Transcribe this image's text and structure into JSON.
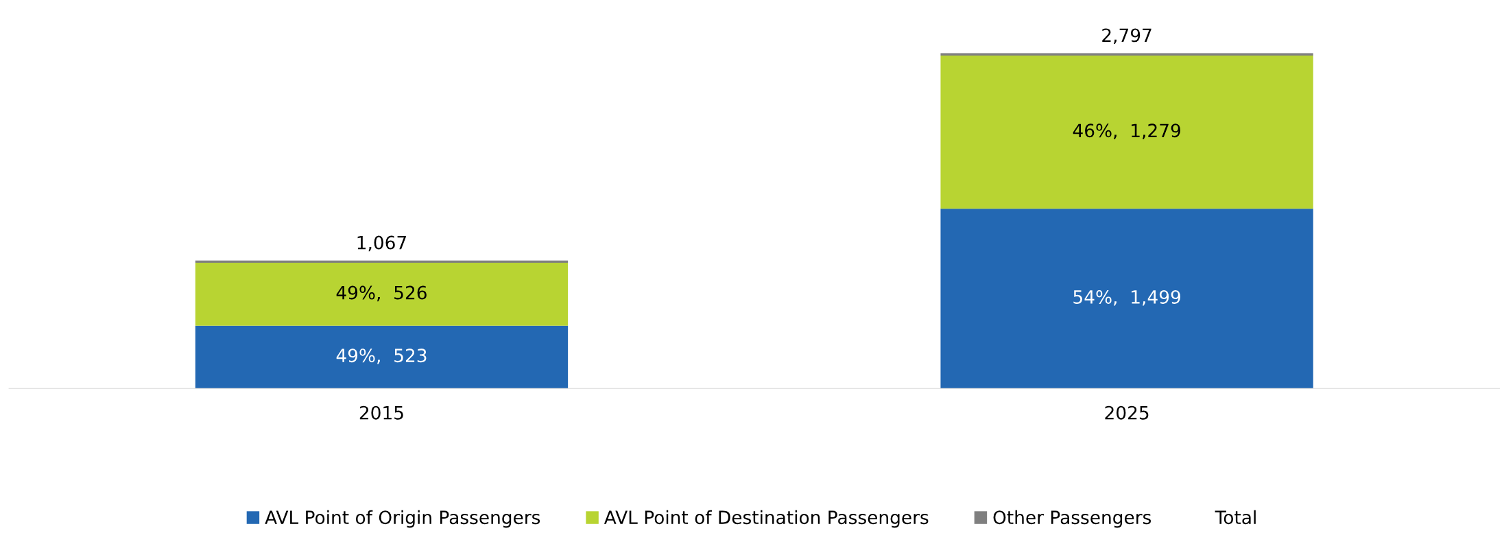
{
  "chart_data": {
    "type": "bar",
    "stacked": true,
    "categories": [
      "2015",
      "2025"
    ],
    "series": [
      {
        "name": "AVL Point of Origin Passengers",
        "color": "#2368b3",
        "values": [
          523,
          1499
        ],
        "value_labels": [
          "49%,  523",
          "54%,  1,499"
        ]
      },
      {
        "name": "AVL Point of Destination Passengers",
        "color": "#b8d432",
        "values": [
          526,
          1279
        ],
        "value_labels": [
          "49%,  526",
          "46%,  1,279"
        ]
      },
      {
        "name": "Other Passengers",
        "color": "#7f7f7f",
        "values": [
          18,
          19
        ]
      },
      {
        "name": "Total",
        "color": null,
        "values": [
          null,
          null
        ]
      }
    ],
    "totals": [
      "1,067",
      "2,797"
    ],
    "legend": "bottom",
    "grid": false,
    "tick_labels": "x"
  }
}
